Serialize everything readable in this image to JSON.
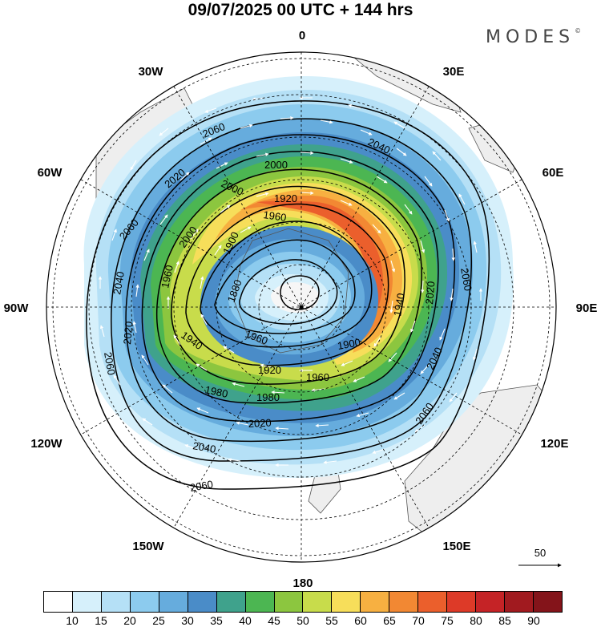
{
  "title": "09/07/2025  00 UTC  + 144 hrs",
  "brand": "MODES",
  "brand_mark": "©",
  "longitude_labels": {
    "0": "0",
    "30E": "30E",
    "60E": "60E",
    "90E": "90E",
    "120E": "120E",
    "150E": "150E",
    "180": "180",
    "150W": "150W",
    "120W": "120W",
    "90W": "90W",
    "60W": "60W",
    "30W": "30W"
  },
  "contour_labels": [
    "2060",
    "2060",
    "2060",
    "2060",
    "2060",
    "2060",
    "2040",
    "2040",
    "2040",
    "2040",
    "2020",
    "2020",
    "2020",
    "2020",
    "2000",
    "2000",
    "2000",
    "1980",
    "1980",
    "1960",
    "1960",
    "1960",
    "1960",
    "1940",
    "1940",
    "1920",
    "1920",
    "1900",
    "1900",
    "1880"
  ],
  "vector_reference": "50",
  "colorbar": {
    "tick_labels": [
      "10",
      "15",
      "20",
      "25",
      "30",
      "35",
      "40",
      "45",
      "50",
      "55",
      "60",
      "65",
      "70",
      "75",
      "80",
      "85",
      "90"
    ],
    "colors": [
      "#ffffff",
      "#d6f0fb",
      "#b5e0f6",
      "#8ccbee",
      "#66acdd",
      "#4a8cc8",
      "#3fa28c",
      "#4cb652",
      "#8cc63f",
      "#c8dc4b",
      "#f7de5a",
      "#f7b041",
      "#f28833",
      "#eb5f2c",
      "#dd3a28",
      "#c52326",
      "#a11a1f",
      "#84141a"
    ],
    "values": [
      10,
      15,
      20,
      25,
      30,
      35,
      40,
      45,
      50,
      55,
      60,
      65,
      70,
      75,
      80,
      85,
      90
    ]
  }
}
